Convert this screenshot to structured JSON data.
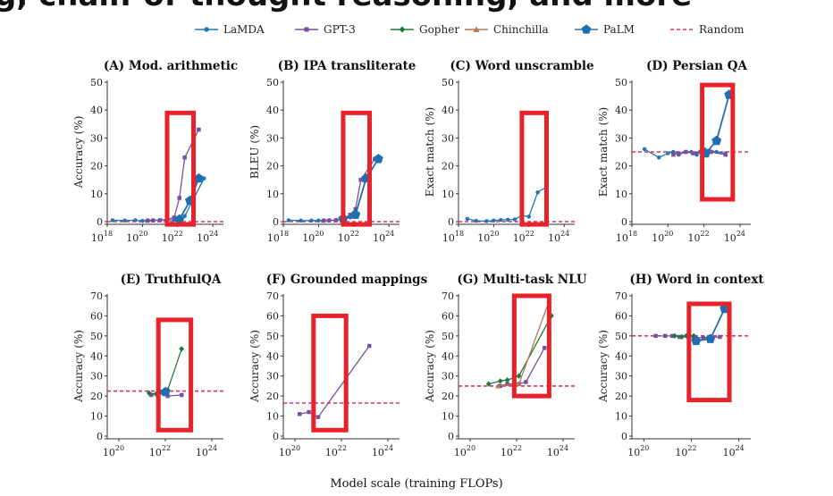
{
  "header_fragment": "g, chain-of-thought reasoning, and more",
  "legend": [
    {
      "name": "LaMDA",
      "color": "#1f78b4",
      "marker": "circle"
    },
    {
      "name": "GPT-3",
      "color": "#7b4f9e",
      "marker": "square"
    },
    {
      "name": "Gopher",
      "color": "#1b7a3a",
      "marker": "diamond"
    },
    {
      "name": "Chinchilla",
      "color": "#b07a55",
      "marker": "triangle"
    },
    {
      "name": "PaLM",
      "color": "#1f6fb0",
      "marker": "pentagon"
    },
    {
      "name": "Random",
      "color": "#d6336c",
      "marker": "dash"
    }
  ],
  "xlabel": "Model scale (training FLOPs)",
  "highlight_color": "#e8222a",
  "chart_data": [
    {
      "id": "A",
      "type": "line",
      "title": "(A) Mod. arithmetic",
      "ylabel": "Accuracy (%)",
      "ylim": [
        0,
        50
      ],
      "yticks": [
        0,
        10,
        20,
        30,
        40,
        50
      ],
      "xlim": [
        18,
        24.6
      ],
      "xticks": [
        18,
        20,
        22,
        24
      ],
      "random": 0,
      "highlight_x": [
        21.4,
        22.9
      ],
      "highlight_y": [
        -1,
        39
      ],
      "series": [
        {
          "name": "LaMDA",
          "x": [
            18.3,
            19.0,
            19.6,
            20.0,
            20.3,
            20.6,
            21.0,
            21.4,
            21.8,
            22.1,
            22.4,
            23.5
          ],
          "y": [
            0.5,
            0.4,
            0.5,
            0.3,
            0.5,
            0.5,
            0.5,
            0.6,
            0.6,
            0.8,
            2.0,
            15.5
          ]
        },
        {
          "name": "GPT-3",
          "x": [
            20.3,
            20.6,
            21.0,
            21.4,
            21.8,
            22.1,
            22.4,
            23.2
          ],
          "y": [
            0.3,
            0.4,
            0.5,
            0.8,
            1.5,
            8.5,
            23,
            33
          ]
        },
        {
          "name": "PaLM",
          "x": [
            22.1,
            22.7,
            23.2
          ],
          "y": [
            0.8,
            7.5,
            15.5
          ]
        }
      ]
    },
    {
      "id": "B",
      "type": "line",
      "title": "(B) IPA transliterate",
      "ylabel": "BLEU (%)",
      "ylim": [
        0,
        50
      ],
      "yticks": [
        0,
        10,
        20,
        30,
        40,
        50
      ],
      "xlim": [
        18,
        24.6
      ],
      "xticks": [
        18,
        20,
        22,
        24
      ],
      "random": 0,
      "highlight_x": [
        21.4,
        22.9
      ],
      "highlight_y": [
        -1,
        39
      ],
      "series": [
        {
          "name": "LaMDA",
          "x": [
            18.3,
            19.0,
            19.6,
            20.0,
            20.3,
            20.6,
            21.0,
            21.4,
            21.8,
            22.1
          ],
          "y": [
            0.5,
            0.4,
            0.4,
            0.4,
            0.5,
            0.5,
            0.6,
            0.9,
            1.5,
            2.0
          ]
        },
        {
          "name": "GPT-3",
          "x": [
            20.3,
            20.6,
            21.0,
            21.4,
            21.8,
            22.1,
            22.4,
            23.2
          ],
          "y": [
            0.3,
            0.4,
            0.5,
            1.0,
            2.5,
            4.5,
            15,
            22.5
          ]
        },
        {
          "name": "PaLM",
          "x": [
            21.4,
            22.1,
            22.7,
            23.4
          ],
          "y": [
            1.0,
            2.5,
            15.5,
            22.5
          ]
        }
      ]
    },
    {
      "id": "C",
      "type": "line",
      "title": "(C) Word unscramble",
      "ylabel": "Exact match (%)",
      "ylim": [
        0,
        50
      ],
      "yticks": [
        0,
        10,
        20,
        30,
        40,
        50
      ],
      "xlim": [
        18,
        24.6
      ],
      "xticks": [
        18,
        20,
        22,
        24
      ],
      "random": 0,
      "highlight_x": [
        21.6,
        23.0
      ],
      "highlight_y": [
        -1,
        39
      ],
      "series": [
        {
          "name": "LaMDA",
          "x": [
            18.5,
            19.0,
            19.6,
            20.0,
            20.4,
            20.8,
            21.2,
            21.6,
            22.0,
            22.5,
            23.0
          ],
          "y": [
            1.0,
            0.3,
            0.2,
            0.4,
            0.6,
            0.7,
            0.8,
            2.2,
            1.8,
            10.5,
            12.5
          ]
        }
      ]
    },
    {
      "id": "D",
      "type": "line",
      "title": "(D) Persian QA",
      "ylabel": "Exact match (%)",
      "ylim": [
        0,
        50
      ],
      "yticks": [
        0,
        10,
        20,
        30,
        40,
        50
      ],
      "xlim": [
        18,
        24.6
      ],
      "xticks": [
        18,
        20,
        22,
        24
      ],
      "random": 25,
      "highlight_x": [
        21.9,
        23.6
      ],
      "highlight_y": [
        8,
        49
      ],
      "series": [
        {
          "name": "LaMDA",
          "x": [
            18.7,
            19.5,
            20.0,
            20.3,
            20.6,
            21.0,
            21.3,
            21.6,
            22.0,
            22.3,
            22.7,
            23.2
          ],
          "y": [
            26,
            23,
            24.5,
            25,
            24,
            25,
            25,
            24,
            26,
            25.5,
            25,
            24.5
          ]
        },
        {
          "name": "GPT-3",
          "x": [
            20.3,
            20.6,
            21.0,
            21.4,
            21.8,
            22.1,
            22.4,
            23.2
          ],
          "y": [
            24,
            24.5,
            25,
            24.5,
            25,
            24.5,
            25,
            24
          ]
        },
        {
          "name": "PaLM",
          "x": [
            22.1,
            22.7,
            23.4
          ],
          "y": [
            24.5,
            29,
            45.5
          ]
        }
      ]
    },
    {
      "id": "E",
      "type": "line",
      "title": "(E) TruthfulQA",
      "ylabel": "Accuracy (%)",
      "ylim": [
        0,
        70
      ],
      "yticks": [
        0,
        10,
        20,
        30,
        40,
        50,
        60,
        70
      ],
      "xlim": [
        19.5,
        24.5
      ],
      "xticks": [
        20,
        22,
        24
      ],
      "random": 22.5,
      "highlight_x": [
        21.7,
        23.1
      ],
      "highlight_y": [
        3,
        58
      ],
      "series": [
        {
          "name": "GPT-3",
          "x": [
            21.4,
            21.7,
            22.1,
            22.7
          ],
          "y": [
            20.5,
            21.5,
            20,
            20.5
          ]
        },
        {
          "name": "Gopher",
          "x": [
            21.3,
            21.6,
            21.8,
            22.1,
            22.7
          ],
          "y": [
            21.5,
            21,
            22,
            23,
            43.5
          ]
        },
        {
          "name": "PaLM",
          "x": [
            22.0
          ],
          "y": [
            22
          ]
        }
      ]
    },
    {
      "id": "F",
      "type": "line",
      "title": "(F) Grounded mappings",
      "ylabel": "Accuracy (%)",
      "ylim": [
        0,
        70
      ],
      "yticks": [
        0,
        10,
        20,
        30,
        40,
        50,
        60,
        70
      ],
      "xlim": [
        19.5,
        24.5
      ],
      "xticks": [
        20,
        22,
        24
      ],
      "random": 16.5,
      "highlight_x": [
        20.8,
        22.2
      ],
      "highlight_y": [
        3,
        60
      ],
      "series": [
        {
          "name": "GPT-3",
          "x": [
            20.2,
            20.6,
            21.0,
            23.2
          ],
          "y": [
            11,
            12,
            9.5,
            45
          ]
        }
      ]
    },
    {
      "id": "G",
      "type": "line",
      "title": "(G) Multi-task NLU",
      "ylabel": "Accuracy (%)",
      "ylim": [
        0,
        70
      ],
      "yticks": [
        0,
        10,
        20,
        30,
        40,
        50,
        60,
        70
      ],
      "xlim": [
        19.5,
        24.5
      ],
      "xticks": [
        20,
        22,
        24
      ],
      "random": 25,
      "highlight_x": [
        21.9,
        23.4
      ],
      "highlight_y": [
        20,
        70
      ],
      "series": [
        {
          "name": "GPT-3",
          "x": [
            21.3,
            21.6,
            22.1,
            22.4,
            23.2
          ],
          "y": [
            25,
            26,
            26,
            27,
            44
          ]
        },
        {
          "name": "Gopher",
          "x": [
            20.8,
            21.3,
            21.6,
            22.1,
            23.5
          ],
          "y": [
            26,
            27.5,
            28,
            30,
            60
          ]
        },
        {
          "name": "Chinchilla",
          "x": [
            21.2,
            22.1,
            23.4
          ],
          "y": [
            25,
            26,
            67.5
          ]
        }
      ]
    },
    {
      "id": "H",
      "type": "line",
      "title": "(H) Word in context",
      "ylabel": "Accuracy (%)",
      "ylim": [
        0,
        70
      ],
      "yticks": [
        0,
        10,
        20,
        30,
        40,
        50,
        60,
        70
      ],
      "xlim": [
        19.5,
        24.5
      ],
      "xticks": [
        20,
        22,
        24
      ],
      "random": 50,
      "highlight_x": [
        21.9,
        23.6
      ],
      "highlight_y": [
        18,
        66
      ],
      "series": [
        {
          "name": "GPT-3",
          "x": [
            20.5,
            20.9,
            21.2,
            21.5,
            21.8,
            22.1,
            22.5,
            23.2
          ],
          "y": [
            50,
            50,
            50,
            49.5,
            50,
            49.5,
            49,
            49.5
          ]
        },
        {
          "name": "Gopher",
          "x": [
            21.3,
            21.6,
            21.8,
            22.1
          ],
          "y": [
            50,
            49.5,
            50,
            50
          ]
        },
        {
          "name": "PaLM",
          "x": [
            22.2,
            22.8,
            23.4
          ],
          "y": [
            47.5,
            48.5,
            63.5
          ]
        }
      ]
    }
  ]
}
